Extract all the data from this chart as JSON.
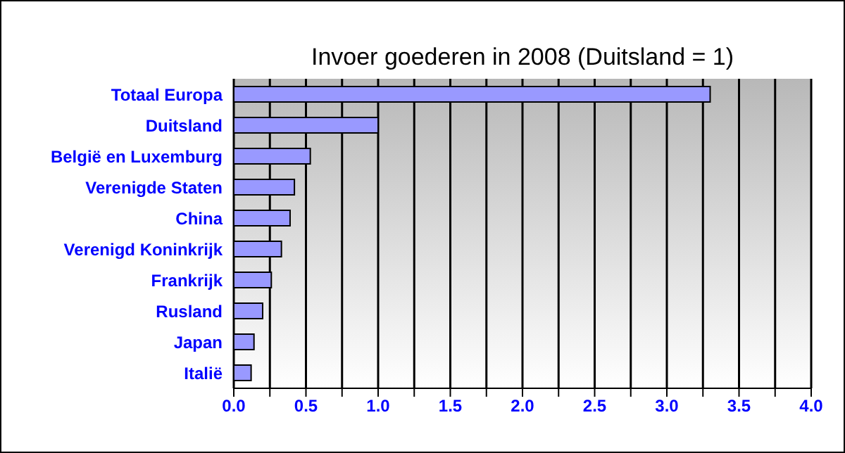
{
  "chart_data": {
    "type": "bar",
    "orientation": "horizontal",
    "title": "Invoer goederen in 2008 (Duitsland = 1)",
    "categories": [
      "Totaal Europa",
      "Duitsland",
      "België en Luxemburg",
      "Verenigde Staten",
      "China",
      "Verenigd Koninkrijk",
      "Frankrijk",
      "Rusland",
      "Japan",
      "Italië"
    ],
    "values": [
      3.3,
      1.0,
      0.53,
      0.42,
      0.39,
      0.33,
      0.26,
      0.2,
      0.14,
      0.12
    ],
    "color": "#9999ff",
    "xlim": [
      0,
      4
    ],
    "xticks": [
      {
        "value": 0,
        "label": "0.0"
      },
      {
        "value": 0.25,
        "label": null
      },
      0.5,
      {
        "value": 0.75,
        "label": null
      },
      {
        "value": 1,
        "label": "1.0"
      },
      {
        "value": 1.25,
        "label": null
      },
      1.5,
      {
        "value": 1.75,
        "label": null
      },
      {
        "value": 2,
        "label": "2.0"
      },
      {
        "value": 2.25,
        "label": null
      },
      2.5,
      {
        "value": 2.75,
        "label": null
      },
      {
        "value": 3,
        "label": "3.0"
      },
      {
        "value": 3.25,
        "label": null
      },
      3.5,
      {
        "value": 3.75,
        "label": null
      },
      {
        "value": 4,
        "label": "4.0"
      }
    ],
    "grid": "x",
    "legend": false
  }
}
